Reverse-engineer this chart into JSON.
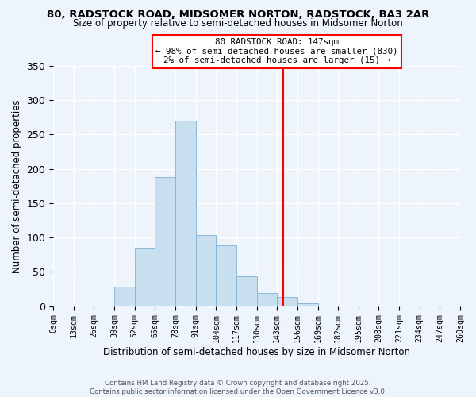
{
  "title": "80, RADSTOCK ROAD, MIDSOMER NORTON, RADSTOCK, BA3 2AR",
  "subtitle": "Size of property relative to semi-detached houses in Midsomer Norton",
  "xlabel": "Distribution of semi-detached houses by size in Midsomer Norton",
  "ylabel": "Number of semi-detached properties",
  "bin_edges": [
    0,
    13,
    26,
    39,
    52,
    65,
    78,
    91,
    104,
    117,
    130,
    143,
    156,
    169,
    182,
    195,
    208,
    221,
    234,
    247,
    260
  ],
  "bin_counts": [
    0,
    0,
    0,
    28,
    85,
    188,
    270,
    104,
    89,
    44,
    19,
    14,
    4,
    1,
    0,
    0,
    0,
    0,
    0,
    0
  ],
  "bar_color": "#c8dff0",
  "bar_edge_color": "#8ab8d8",
  "vline_x": 147,
  "vline_color": "red",
  "annotation_title": "80 RADSTOCK ROAD: 147sqm",
  "annotation_line1": "← 98% of semi-detached houses are smaller (830)",
  "annotation_line2": "2% of semi-detached houses are larger (15) →",
  "annotation_box_color": "#ffffff",
  "annotation_border_color": "red",
  "ylim": [
    0,
    350
  ],
  "yticks": [
    0,
    50,
    100,
    150,
    200,
    250,
    300,
    350
  ],
  "tick_labels": [
    "0sqm",
    "13sqm",
    "26sqm",
    "39sqm",
    "52sqm",
    "65sqm",
    "78sqm",
    "91sqm",
    "104sqm",
    "117sqm",
    "130sqm",
    "143sqm",
    "156sqm",
    "169sqm",
    "182sqm",
    "195sqm",
    "208sqm",
    "221sqm",
    "234sqm",
    "247sqm",
    "260sqm"
  ],
  "footer_line1": "Contains HM Land Registry data © Crown copyright and database right 2025.",
  "footer_line2": "Contains public sector information licensed under the Open Government Licence v3.0.",
  "background_color": "#eef4fb",
  "grid_color": "#ffffff"
}
